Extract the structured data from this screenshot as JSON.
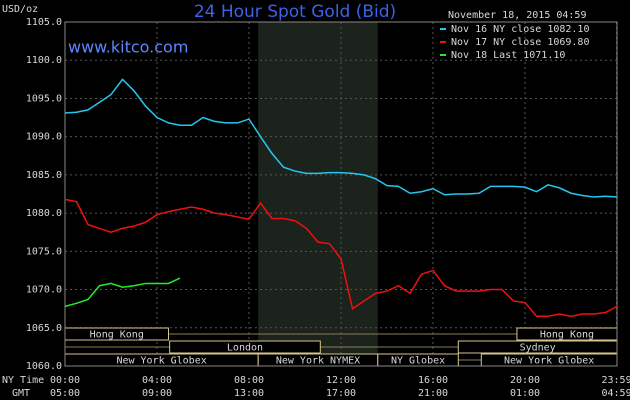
{
  "chart_data": {
    "type": "line",
    "title": "24 Hour Spot Gold (Bid)",
    "y_label": "USD/oz",
    "watermark": "www.kitco.com",
    "timestamp": "November 18, 2015 04:59",
    "x_row_labels": [
      "NY Time",
      "GMT"
    ],
    "x": [
      0,
      0.5,
      1,
      1.5,
      2,
      2.5,
      3,
      3.5,
      4,
      4.5,
      5,
      5.5,
      6,
      6.5,
      7,
      7.5,
      8,
      8.5,
      9,
      9.5,
      10,
      10.5,
      11,
      11.5,
      12,
      12.5,
      13,
      13.5,
      14,
      14.5,
      15,
      15.5,
      16,
      16.5,
      17,
      17.5,
      18,
      18.5,
      19,
      19.5,
      20,
      20.5,
      21,
      21.5,
      22,
      22.5,
      23,
      23.5,
      24
    ],
    "series": [
      {
        "name": "Nov 16 NY close 1082.10",
        "color": "#22c8f0",
        "values": [
          1093.1,
          1093.2,
          1093.5,
          1094.5,
          1095.5,
          1097.5,
          1096,
          1094,
          1092.5,
          1091.8,
          1091.5,
          1091.5,
          1092.5,
          1092,
          1091.8,
          1091.8,
          1092.3,
          1090,
          1087.8,
          1086,
          1085.5,
          1085.2,
          1085.2,
          1085.3,
          1085.3,
          1085.2,
          1085,
          1084.5,
          1083.6,
          1083.5,
          1082.6,
          1082.8,
          1083.2,
          1082.4,
          1082.5,
          1082.5,
          1082.6,
          1083.5,
          1083.5,
          1083.5,
          1083.4,
          1082.8,
          1083.7,
          1083.3,
          1082.6,
          1082.3,
          1082.1,
          1082.2,
          1082.1
        ]
      },
      {
        "name": "Nov 17 NY close 1069.80",
        "color": "#ee1111",
        "values": [
          1081.8,
          1081.5,
          1078.5,
          1078,
          1077.5,
          1078,
          1078.3,
          1078.8,
          1079.8,
          1080.2,
          1080.5,
          1080.8,
          1080.5,
          1080,
          1079.8,
          1079.5,
          1079.2,
          1081.3,
          1079.3,
          1079.3,
          1079,
          1078,
          1076.2,
          1076,
          1074,
          1067.5,
          1068.5,
          1069.5,
          1069.8,
          1070.5,
          1069.5,
          1072,
          1072.5,
          1070.5,
          1069.8,
          1069.8,
          1069.8,
          1070,
          1070,
          1068.5,
          1068.3,
          1066.5,
          1066.5,
          1066.8,
          1066.5,
          1066.8,
          1066.8,
          1067,
          1067.8
        ]
      },
      {
        "name": "Nov 18 Last 1071.10",
        "color": "#22ee22",
        "values": [
          1067.8,
          1068.2,
          1068.7,
          1070.5,
          1070.8,
          1070.3,
          1070.5,
          1070.8,
          1070.8,
          1070.8,
          1071.5,
          null,
          null,
          null,
          null,
          null,
          null,
          null,
          null,
          null,
          null,
          null,
          null,
          null,
          null,
          null,
          null,
          null,
          null,
          null,
          null,
          null,
          null,
          null,
          null,
          null,
          null,
          null,
          null,
          null,
          null,
          null,
          null,
          null,
          null,
          null,
          null,
          null,
          null
        ]
      }
    ],
    "xlim": [
      0,
      24
    ],
    "xticks": [
      {
        "value": 0,
        "label": "00:00"
      },
      {
        "value": 4,
        "label": "04:00"
      },
      {
        "value": 8,
        "label": "08:00"
      },
      {
        "value": 12,
        "label": "12:00"
      },
      {
        "value": 16,
        "label": "16:00"
      },
      {
        "value": 20,
        "label": "20:00"
      },
      {
        "value": 23.98,
        "label": "23:59"
      }
    ],
    "gmt_labels": [
      "05:00",
      "09:00",
      "13:00",
      "17:00",
      "21:00",
      "01:00",
      "04:59"
    ],
    "ylim": [
      1060,
      1105
    ],
    "yticks": [
      {
        "value": 1060,
        "label": "1060.0"
      },
      {
        "value": 1065,
        "label": "1065.0"
      },
      {
        "value": 1070,
        "label": "1070.0"
      },
      {
        "value": 1075,
        "label": "1075.0"
      },
      {
        "value": 1080,
        "label": "1080.0"
      },
      {
        "value": 1085,
        "label": "1085.0"
      },
      {
        "value": 1090,
        "label": "1090.0"
      },
      {
        "value": 1095,
        "label": "1095.0"
      },
      {
        "value": 1100,
        "label": "1100.0"
      },
      {
        "value": 1105,
        "label": "1105.0"
      }
    ],
    "grid": true,
    "highlight": [
      8.4,
      13.6
    ],
    "session_rows": [
      [
        {
          "name": "Hong Kong",
          "start": 0,
          "end": 4.5
        },
        {
          "name": "Hong Kong",
          "start": 19.65,
          "end": 24
        }
      ],
      [
        {
          "name": "London",
          "start": 4.55,
          "end": 11.1
        },
        {
          "name": "Sydney",
          "start": 17.1,
          "end": 24
        }
      ],
      [
        {
          "name": "New York Globex",
          "start": 0,
          "end": 8.4
        },
        {
          "name": "New York NYMEX",
          "start": 8.4,
          "end": 13.6
        },
        {
          "name": "NY Globex",
          "start": 13.6,
          "end": 17.1
        },
        {
          "name": "New York Globex",
          "start": 18.1,
          "end": 24
        }
      ]
    ]
  }
}
